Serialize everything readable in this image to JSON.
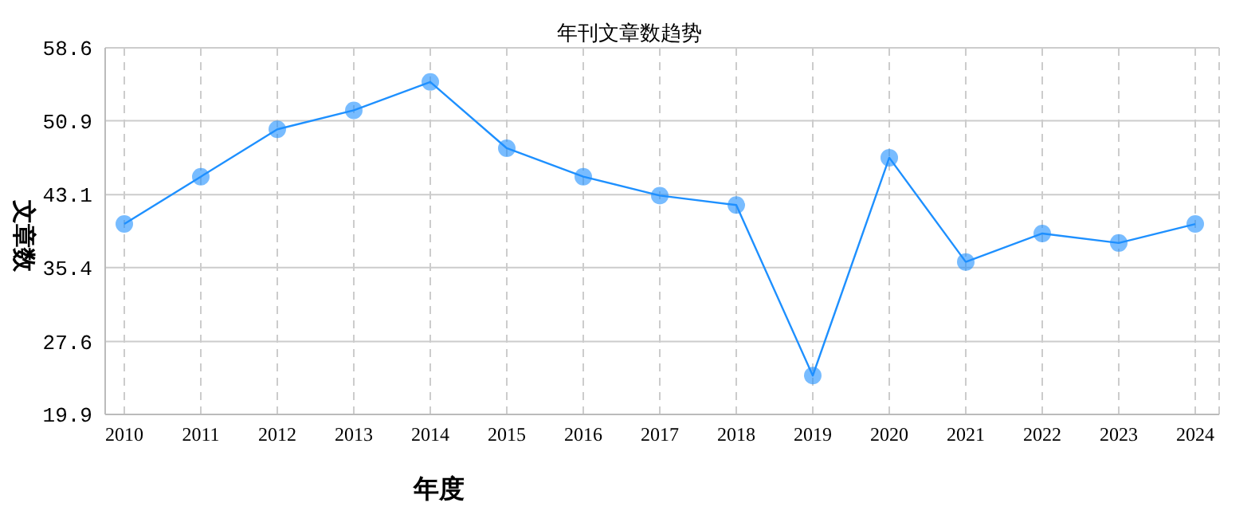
{
  "chart_data": {
    "type": "line",
    "title": "年刊文章数趋势",
    "xlabel": "年度",
    "ylabel": "文章数",
    "categories": [
      "2010",
      "2011",
      "2012",
      "2013",
      "2014",
      "2015",
      "2016",
      "2017",
      "2018",
      "2019",
      "2020",
      "2021",
      "2022",
      "2023",
      "2024"
    ],
    "series": [
      {
        "color": "#1e90ff",
        "values": [
          40,
          45,
          50,
          52,
          55,
          48,
          45,
          43,
          42,
          24,
          47,
          36,
          39,
          38,
          40
        ]
      }
    ],
    "ylim": [
      19.9,
      58.6
    ],
    "yticks": [
      19.9,
      27.6,
      35.4,
      43.1,
      50.9,
      58.6
    ],
    "grid": true,
    "marker": "circle",
    "line_style": "solid",
    "legend": false
  }
}
